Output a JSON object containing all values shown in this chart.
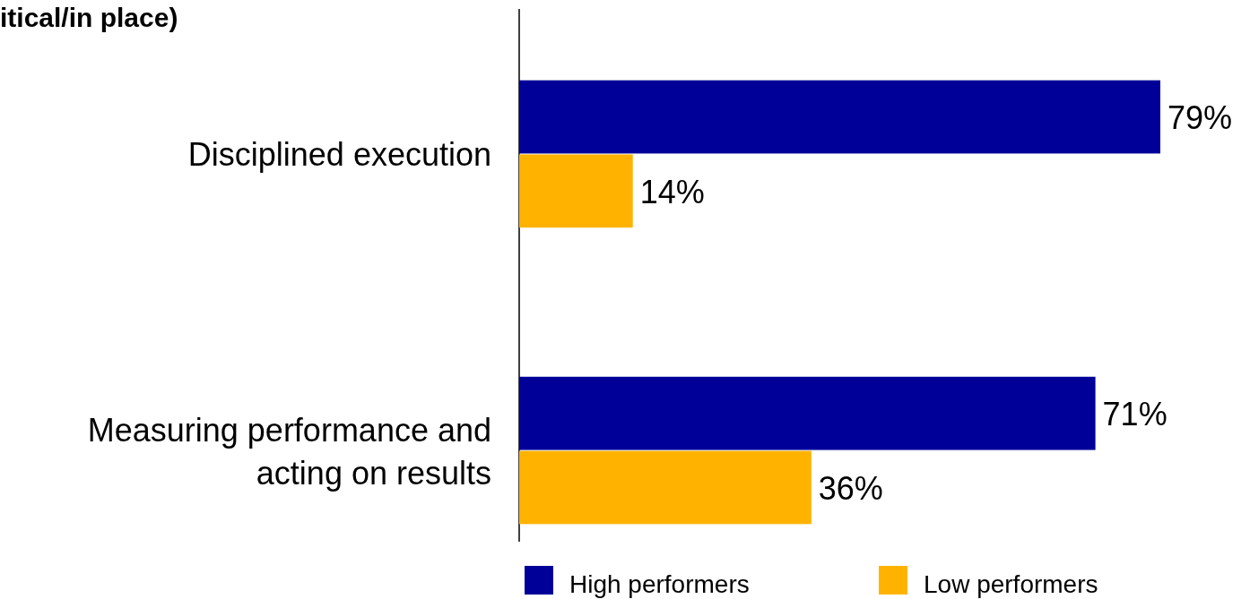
{
  "chart_data": {
    "type": "bar",
    "orientation": "horizontal",
    "title": "itical/in place)",
    "categories": [
      "Disciplined execution",
      "Measuring performance and\nacting on results"
    ],
    "series": [
      {
        "name": "High performers",
        "color": "#000099",
        "values": [
          79,
          71
        ],
        "value_labels": [
          "79%",
          "71%"
        ]
      },
      {
        "name": "Low performers",
        "color": "#ffb300",
        "values": [
          14,
          36
        ],
        "value_labels": [
          "14%",
          "36%"
        ]
      }
    ],
    "legend": "bottom"
  }
}
